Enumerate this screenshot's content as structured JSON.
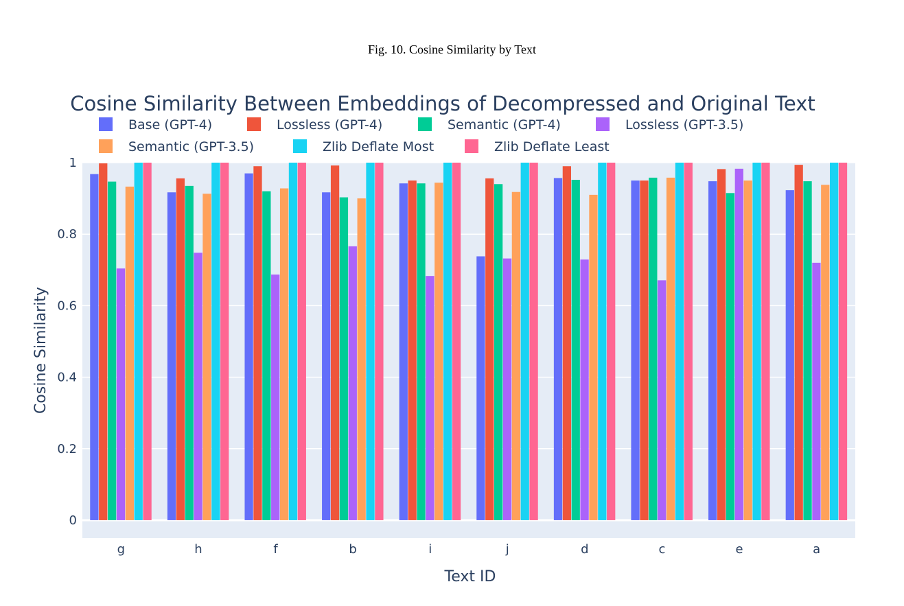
{
  "caption": "Fig. 10.  Cosine Similarity by Text",
  "chart_data": {
    "type": "bar",
    "title": "Cosine Similarity Between Embeddings of Decompressed and Original Text",
    "xlabel": "Text ID",
    "ylabel": "Cosine Similarity",
    "ylim": [
      -0.05,
      1.0
    ],
    "yticks": [
      0,
      0.2,
      0.4,
      0.6,
      0.8,
      1
    ],
    "ytick_labels": [
      "0",
      "0.2",
      "0.4",
      "0.6",
      "0.8",
      "1"
    ],
    "grid": true,
    "legend_position": "top",
    "background": "#e5ecf6",
    "categories": [
      "g",
      "h",
      "f",
      "b",
      "i",
      "j",
      "d",
      "c",
      "e",
      "a"
    ],
    "series": [
      {
        "name": "Base (GPT-4)",
        "color": "#636efa",
        "values": [
          0.968,
          0.917,
          0.97,
          0.917,
          0.942,
          0.738,
          0.957,
          0.95,
          0.948,
          0.923
        ]
      },
      {
        "name": "Lossless (GPT-4)",
        "color": "#ef553b",
        "values": [
          0.998,
          0.956,
          0.99,
          0.992,
          0.95,
          0.956,
          0.99,
          0.95,
          0.982,
          0.994
        ]
      },
      {
        "name": "Semantic (GPT-4)",
        "color": "#00cc96",
        "values": [
          0.947,
          0.935,
          0.92,
          0.903,
          0.942,
          0.94,
          0.952,
          0.958,
          0.915,
          0.948
        ]
      },
      {
        "name": "Lossless (GPT-3.5)",
        "color": "#ab63fa",
        "values": [
          0.704,
          0.748,
          0.687,
          0.766,
          0.683,
          0.732,
          0.729,
          0.671,
          0.983,
          0.72
        ]
      },
      {
        "name": "Semantic (GPT-3.5)",
        "color": "#ffa15a",
        "values": [
          0.933,
          0.913,
          0.928,
          0.9,
          0.944,
          0.918,
          0.91,
          0.958,
          0.95,
          0.938
        ]
      },
      {
        "name": "Zlib Deflate Most",
        "color": "#19d3f3",
        "values": [
          1,
          1,
          1,
          1,
          1,
          1,
          1,
          1,
          1,
          1
        ]
      },
      {
        "name": "Zlib Deflate Least",
        "color": "#ff6692",
        "values": [
          1,
          1,
          1,
          1,
          1,
          1,
          1,
          1,
          1,
          1
        ]
      }
    ]
  }
}
